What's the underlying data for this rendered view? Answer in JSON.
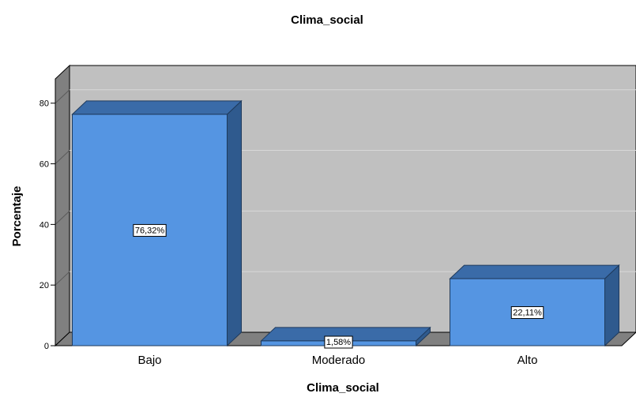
{
  "chart_data": {
    "type": "bar",
    "title": "Clima_social",
    "xlabel": "Clima_social",
    "ylabel": "Porcentaje",
    "categories": [
      "Bajo",
      "Moderado",
      "Alto"
    ],
    "values": [
      76.32,
      1.58,
      22.11
    ],
    "data_labels": [
      "76,32%",
      "1,58%",
      "22,11%"
    ],
    "yticks": [
      "0",
      "20",
      "40",
      "60",
      "80"
    ],
    "ylim": [
      0,
      88
    ],
    "grid": true,
    "style": "3d",
    "colors": {
      "bar_front": "#5595e2",
      "bar_top": "#3a6ba8",
      "bar_side": "#2f5a8e",
      "wall": "#c0c0c0",
      "wall_side": "#808080",
      "floor": "#808080",
      "grid": "#d8d8d8"
    }
  }
}
